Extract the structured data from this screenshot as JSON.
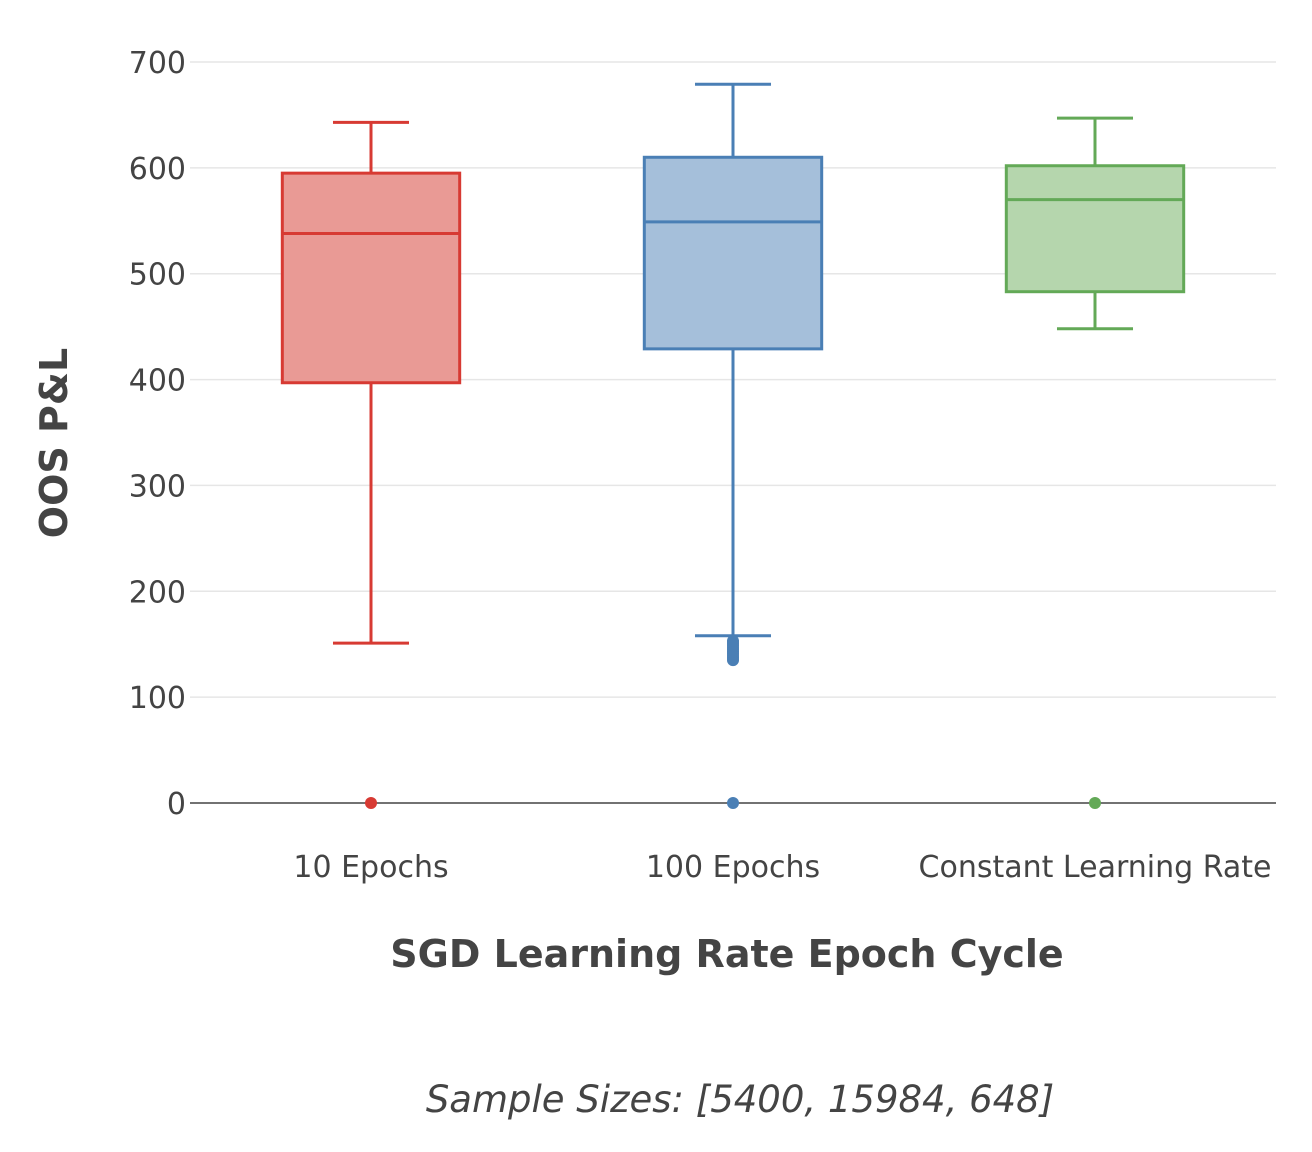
{
  "chart_data": {
    "type": "box",
    "title": "",
    "xlabel": "SGD Learning Rate Epoch Cycle",
    "ylabel": "OOS P&L",
    "ylim": [
      0,
      700
    ],
    "yticks": [
      0,
      100,
      200,
      300,
      400,
      500,
      600,
      700
    ],
    "grid": true,
    "categories": [
      "10 Epochs",
      "100 Epochs",
      "Constant Learning Rate"
    ],
    "series": [
      {
        "category": "10 Epochs",
        "min": 151,
        "q1": 397,
        "median": 538,
        "q3": 595,
        "max": 643,
        "outliers": [
          0
        ],
        "color": "#d73a33",
        "fill": "#e99a95"
      },
      {
        "category": "100 Epochs",
        "min": 158,
        "q1": 429,
        "median": 549,
        "q3": 610,
        "max": 679,
        "outliers": [
          0,
          135,
          137,
          139,
          141,
          143,
          145,
          147,
          149,
          151,
          153
        ],
        "color": "#4a7fb5",
        "fill": "#a5bfda"
      },
      {
        "category": "Constant Learning Rate",
        "min": 448,
        "q1": 483,
        "median": 570,
        "q3": 602,
        "max": 647,
        "outliers": [
          0
        ],
        "color": "#63a957",
        "fill": "#b5d6ad"
      }
    ]
  },
  "footnote": "Sample Sizes: [5400, 15984, 648]"
}
